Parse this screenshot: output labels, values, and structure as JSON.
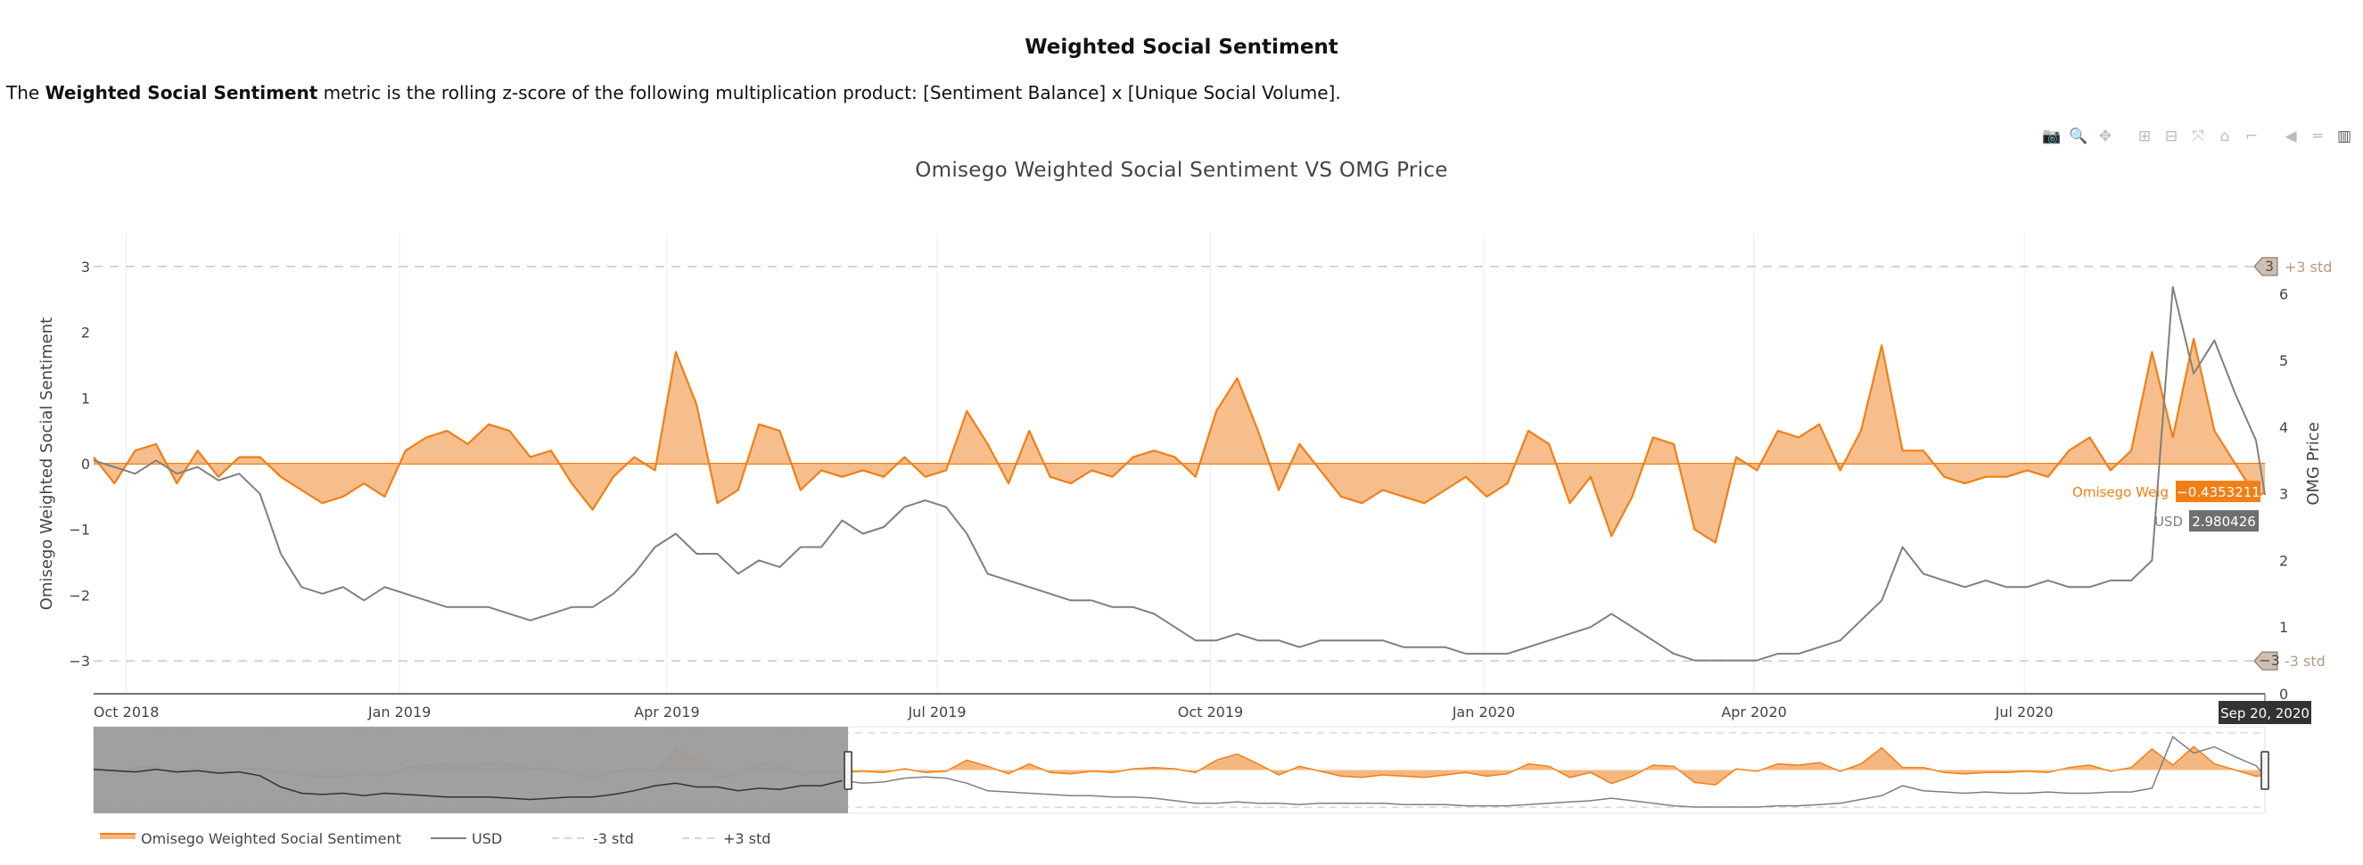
{
  "header": {
    "title": "Weighted Social Sentiment",
    "desc_prefix": "The ",
    "desc_bold": "Weighted Social Sentiment",
    "desc_rest": " metric is the rolling z-score of the following multiplication product: [Sentiment Balance] x [Unique Social Volume]."
  },
  "toolbar": {
    "icons": [
      "camera-icon",
      "zoom-icon",
      "pan-icon",
      "zoom-in-icon",
      "zoom-out-icon",
      "autoscale-icon",
      "reset-axes-icon",
      "spike-lines-icon",
      "hover-closest-icon",
      "hover-compare-icon",
      "plotly-logo-icon"
    ],
    "glyphs": [
      "📷",
      "🔍",
      "✥",
      "⊞",
      "⊟",
      "⤧",
      "⌂",
      "⌐",
      "◀",
      "═",
      "▥"
    ]
  },
  "colors": {
    "sentiment": "#f07f16",
    "sentiment_fill": "#f5b780",
    "usd": "#7f7f7f",
    "std": "#c8c8c8",
    "std_label": "#b59a86",
    "range_shade": "#9b9b9b"
  },
  "chart_data": {
    "type": "area",
    "title": "Omisego Weighted Social Sentiment VS OMG Price",
    "x_ticks": [
      "Oct 2018",
      "Jan 2019",
      "Apr 2019",
      "Jul 2019",
      "Oct 2019",
      "Jan 2020",
      "Apr 2020",
      "Jul 2020"
    ],
    "x_range": [
      "2018-09-20",
      "2020-09-20"
    ],
    "y_left": {
      "label": "Omisego Weighted Social Sentiment",
      "ticks": [
        "3",
        "2",
        "1",
        "0",
        "−1",
        "−2",
        "−3"
      ],
      "range": [
        -3.5,
        3.5
      ]
    },
    "y_right": {
      "label": "OMG Price",
      "ticks": [
        "0",
        "1",
        "2",
        "3",
        "4",
        "5",
        "6"
      ],
      "range": [
        0,
        6.9
      ]
    },
    "std_lines": [
      {
        "name": "+3 std",
        "value": 3,
        "marker": "3"
      },
      {
        "name": "-3 std",
        "value": -3,
        "marker": "−3"
      }
    ],
    "series": [
      {
        "name": "Omisego Weighted Social Sentiment",
        "axis": "left",
        "x": [
          "2018-09-20",
          "2018-09-27",
          "2018-10-04",
          "2018-10-11",
          "2018-10-18",
          "2018-10-25",
          "2018-11-01",
          "2018-11-08",
          "2018-11-15",
          "2018-11-22",
          "2018-11-29",
          "2018-12-06",
          "2018-12-13",
          "2018-12-20",
          "2018-12-27",
          "2019-01-03",
          "2019-01-10",
          "2019-01-17",
          "2019-01-24",
          "2019-01-31",
          "2019-02-07",
          "2019-02-14",
          "2019-02-21",
          "2019-02-28",
          "2019-03-07",
          "2019-03-14",
          "2019-03-21",
          "2019-03-28",
          "2019-04-04",
          "2019-04-11",
          "2019-04-18",
          "2019-04-25",
          "2019-05-02",
          "2019-05-09",
          "2019-05-16",
          "2019-05-23",
          "2019-05-30",
          "2019-06-06",
          "2019-06-13",
          "2019-06-20",
          "2019-06-27",
          "2019-07-04",
          "2019-07-11",
          "2019-07-18",
          "2019-07-25",
          "2019-08-01",
          "2019-08-08",
          "2019-08-15",
          "2019-08-22",
          "2019-08-29",
          "2019-09-05",
          "2019-09-12",
          "2019-09-19",
          "2019-09-26",
          "2019-10-03",
          "2019-10-10",
          "2019-10-17",
          "2019-10-24",
          "2019-10-31",
          "2019-11-07",
          "2019-11-14",
          "2019-11-21",
          "2019-11-28",
          "2019-12-05",
          "2019-12-12",
          "2019-12-19",
          "2019-12-26",
          "2020-01-02",
          "2020-01-09",
          "2020-01-16",
          "2020-01-23",
          "2020-01-30",
          "2020-02-06",
          "2020-02-13",
          "2020-02-20",
          "2020-02-27",
          "2020-03-05",
          "2020-03-12",
          "2020-03-19",
          "2020-03-26",
          "2020-04-02",
          "2020-04-09",
          "2020-04-16",
          "2020-04-23",
          "2020-04-30",
          "2020-05-07",
          "2020-05-14",
          "2020-05-21",
          "2020-05-28",
          "2020-06-04",
          "2020-06-11",
          "2020-06-18",
          "2020-06-25",
          "2020-07-02",
          "2020-07-09",
          "2020-07-16",
          "2020-07-23",
          "2020-07-30",
          "2020-08-06",
          "2020-08-13",
          "2020-08-20",
          "2020-08-27",
          "2020-09-03",
          "2020-09-10",
          "2020-09-17",
          "2020-09-20"
        ],
        "values": [
          0.1,
          -0.3,
          0.2,
          0.3,
          -0.3,
          0.2,
          -0.2,
          0.1,
          0.1,
          -0.2,
          -0.4,
          -0.6,
          -0.5,
          -0.3,
          -0.5,
          0.2,
          0.4,
          0.5,
          0.3,
          0.6,
          0.5,
          0.1,
          0.2,
          -0.3,
          -0.7,
          -0.2,
          0.1,
          -0.1,
          1.7,
          0.9,
          -0.6,
          -0.4,
          0.6,
          0.5,
          -0.4,
          -0.1,
          -0.2,
          -0.1,
          -0.2,
          0.1,
          -0.2,
          -0.1,
          0.8,
          0.3,
          -0.3,
          0.5,
          -0.2,
          -0.3,
          -0.1,
          -0.2,
          0.1,
          0.2,
          0.1,
          -0.2,
          0.8,
          1.3,
          0.5,
          -0.4,
          0.3,
          -0.1,
          -0.5,
          -0.6,
          -0.4,
          -0.5,
          -0.6,
          -0.4,
          -0.2,
          -0.5,
          -0.3,
          0.5,
          0.3,
          -0.6,
          -0.2,
          -1.1,
          -0.5,
          0.4,
          0.3,
          -1.0,
          -1.2,
          0.1,
          -0.1,
          0.5,
          0.4,
          0.6,
          -0.1,
          0.5,
          1.8,
          0.2,
          0.2,
          -0.2,
          -0.3,
          -0.2,
          -0.2,
          -0.1,
          -0.2,
          0.2,
          0.4,
          -0.1,
          0.2,
          1.7,
          0.4,
          1.9,
          0.5,
          0.0,
          -0.5,
          -0.4353211
        ]
      },
      {
        "name": "USD",
        "axis": "right",
        "x": [
          "2018-09-20",
          "2018-09-27",
          "2018-10-04",
          "2018-10-11",
          "2018-10-18",
          "2018-10-25",
          "2018-11-01",
          "2018-11-08",
          "2018-11-15",
          "2018-11-22",
          "2018-11-29",
          "2018-12-06",
          "2018-12-13",
          "2018-12-20",
          "2018-12-27",
          "2019-01-03",
          "2019-01-10",
          "2019-01-17",
          "2019-01-24",
          "2019-01-31",
          "2019-02-07",
          "2019-02-14",
          "2019-02-21",
          "2019-02-28",
          "2019-03-07",
          "2019-03-14",
          "2019-03-21",
          "2019-03-28",
          "2019-04-04",
          "2019-04-11",
          "2019-04-18",
          "2019-04-25",
          "2019-05-02",
          "2019-05-09",
          "2019-05-16",
          "2019-05-23",
          "2019-05-30",
          "2019-06-06",
          "2019-06-13",
          "2019-06-20",
          "2019-06-27",
          "2019-07-04",
          "2019-07-11",
          "2019-07-18",
          "2019-07-25",
          "2019-08-01",
          "2019-08-08",
          "2019-08-15",
          "2019-08-22",
          "2019-08-29",
          "2019-09-05",
          "2019-09-12",
          "2019-09-19",
          "2019-09-26",
          "2019-10-03",
          "2019-10-10",
          "2019-10-17",
          "2019-10-24",
          "2019-10-31",
          "2019-11-07",
          "2019-11-14",
          "2019-11-21",
          "2019-11-28",
          "2019-12-05",
          "2019-12-12",
          "2019-12-19",
          "2019-12-26",
          "2020-01-02",
          "2020-01-09",
          "2020-01-16",
          "2020-01-23",
          "2020-01-30",
          "2020-02-06",
          "2020-02-13",
          "2020-02-20",
          "2020-02-27",
          "2020-03-05",
          "2020-03-12",
          "2020-03-19",
          "2020-03-26",
          "2020-04-02",
          "2020-04-09",
          "2020-04-16",
          "2020-04-23",
          "2020-04-30",
          "2020-05-07",
          "2020-05-14",
          "2020-05-21",
          "2020-05-28",
          "2020-06-04",
          "2020-06-11",
          "2020-06-18",
          "2020-06-25",
          "2020-07-02",
          "2020-07-09",
          "2020-07-16",
          "2020-07-23",
          "2020-07-30",
          "2020-08-06",
          "2020-08-13",
          "2020-08-20",
          "2020-08-27",
          "2020-09-03",
          "2020-09-10",
          "2020-09-17",
          "2020-09-20"
        ],
        "values": [
          3.5,
          3.4,
          3.3,
          3.5,
          3.3,
          3.4,
          3.2,
          3.3,
          3.0,
          2.1,
          1.6,
          1.5,
          1.6,
          1.4,
          1.6,
          1.5,
          1.4,
          1.3,
          1.3,
          1.3,
          1.2,
          1.1,
          1.2,
          1.3,
          1.3,
          1.5,
          1.8,
          2.2,
          2.4,
          2.1,
          2.1,
          1.8,
          2.0,
          1.9,
          2.2,
          2.2,
          2.6,
          2.4,
          2.5,
          2.8,
          2.9,
          2.8,
          2.4,
          1.8,
          1.7,
          1.6,
          1.5,
          1.4,
          1.4,
          1.3,
          1.3,
          1.2,
          1.0,
          0.8,
          0.8,
          0.9,
          0.8,
          0.8,
          0.7,
          0.8,
          0.8,
          0.8,
          0.8,
          0.7,
          0.7,
          0.7,
          0.6,
          0.6,
          0.6,
          0.7,
          0.8,
          0.9,
          1.0,
          1.2,
          1.0,
          0.8,
          0.6,
          0.5,
          0.5,
          0.5,
          0.5,
          0.6,
          0.6,
          0.7,
          0.8,
          1.1,
          1.4,
          2.2,
          1.8,
          1.7,
          1.6,
          1.7,
          1.6,
          1.6,
          1.7,
          1.6,
          1.6,
          1.7,
          1.7,
          2.0,
          6.1,
          4.8,
          5.3,
          4.5,
          3.8,
          2.980426
        ]
      }
    ],
    "hover": {
      "date": "Sep 20, 2020",
      "sentiment_name": "Omisego Weig",
      "sentiment_value": "−0.4353211",
      "usd_name": "USD",
      "usd_value": "2.980426"
    },
    "legend": [
      "Omisego Weighted Social Sentiment",
      "USD",
      "-3 std",
      "+3 std"
    ],
    "range_slider": {
      "selected_from": "2019-06-01",
      "selected_to": "2020-09-20"
    }
  }
}
